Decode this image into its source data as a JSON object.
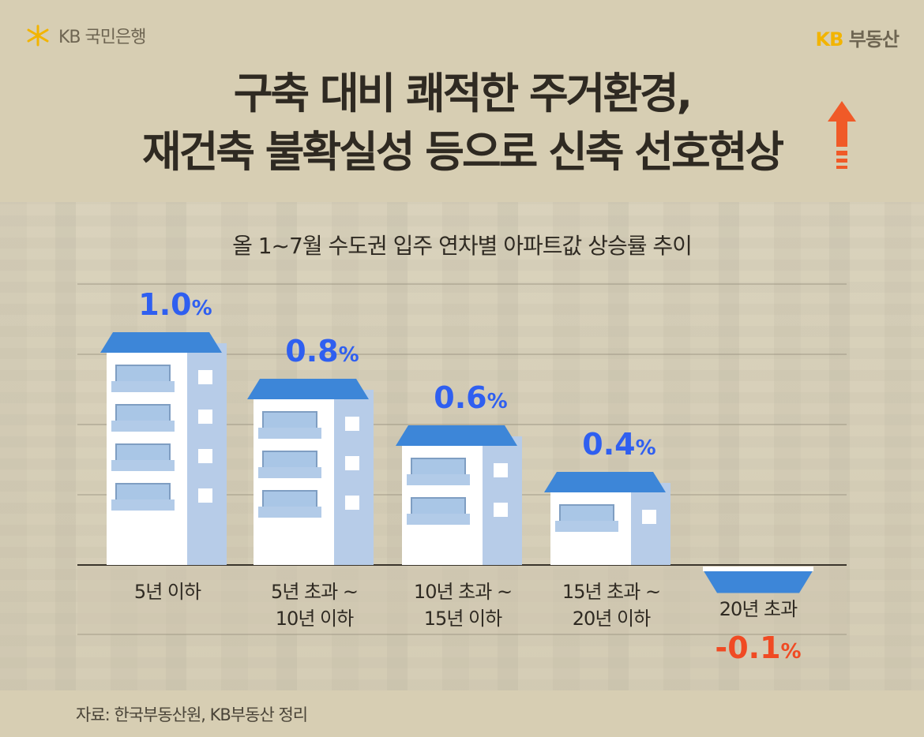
{
  "header": {
    "bank_logo_text": "KB 국민은행",
    "brand_prefix": "KB",
    "brand_suffix": "부동산",
    "title_line1": "구축 대비 쾌적한 주거환경,",
    "title_line2": "재건축 불확실성 등으로 신축 선호현상"
  },
  "colors": {
    "positive": "#2f5ff0",
    "negative": "#f04a23",
    "roof": "#3d86d8",
    "building": "#ffffff",
    "building_side": "#b7cce8",
    "window": "#a9c6e6",
    "arrow": "#f05a28",
    "logo_yellow": "#f2b400"
  },
  "chart_data": {
    "type": "bar",
    "title": "올 1~7월 수도권 입주 연차별 아파트값 상승률 추이",
    "categories": [
      [
        "5년 이하"
      ],
      [
        "5년 초과 ~",
        "10년 이하"
      ],
      [
        "10년 초과 ~",
        "15년 이하"
      ],
      [
        "15년 초과 ~",
        "20년 이하"
      ],
      [
        "20년 초과"
      ]
    ],
    "values": [
      1.0,
      0.8,
      0.6,
      0.4,
      -0.1
    ],
    "value_labels": [
      "1.0",
      "0.8",
      "0.6",
      "0.4",
      "-0.1"
    ],
    "unit": "%",
    "ylim": [
      -0.1,
      1.1
    ],
    "grid": true,
    "bar_style": "building"
  },
  "source_note": "자료: 한국부동산원, KB부동산 정리"
}
